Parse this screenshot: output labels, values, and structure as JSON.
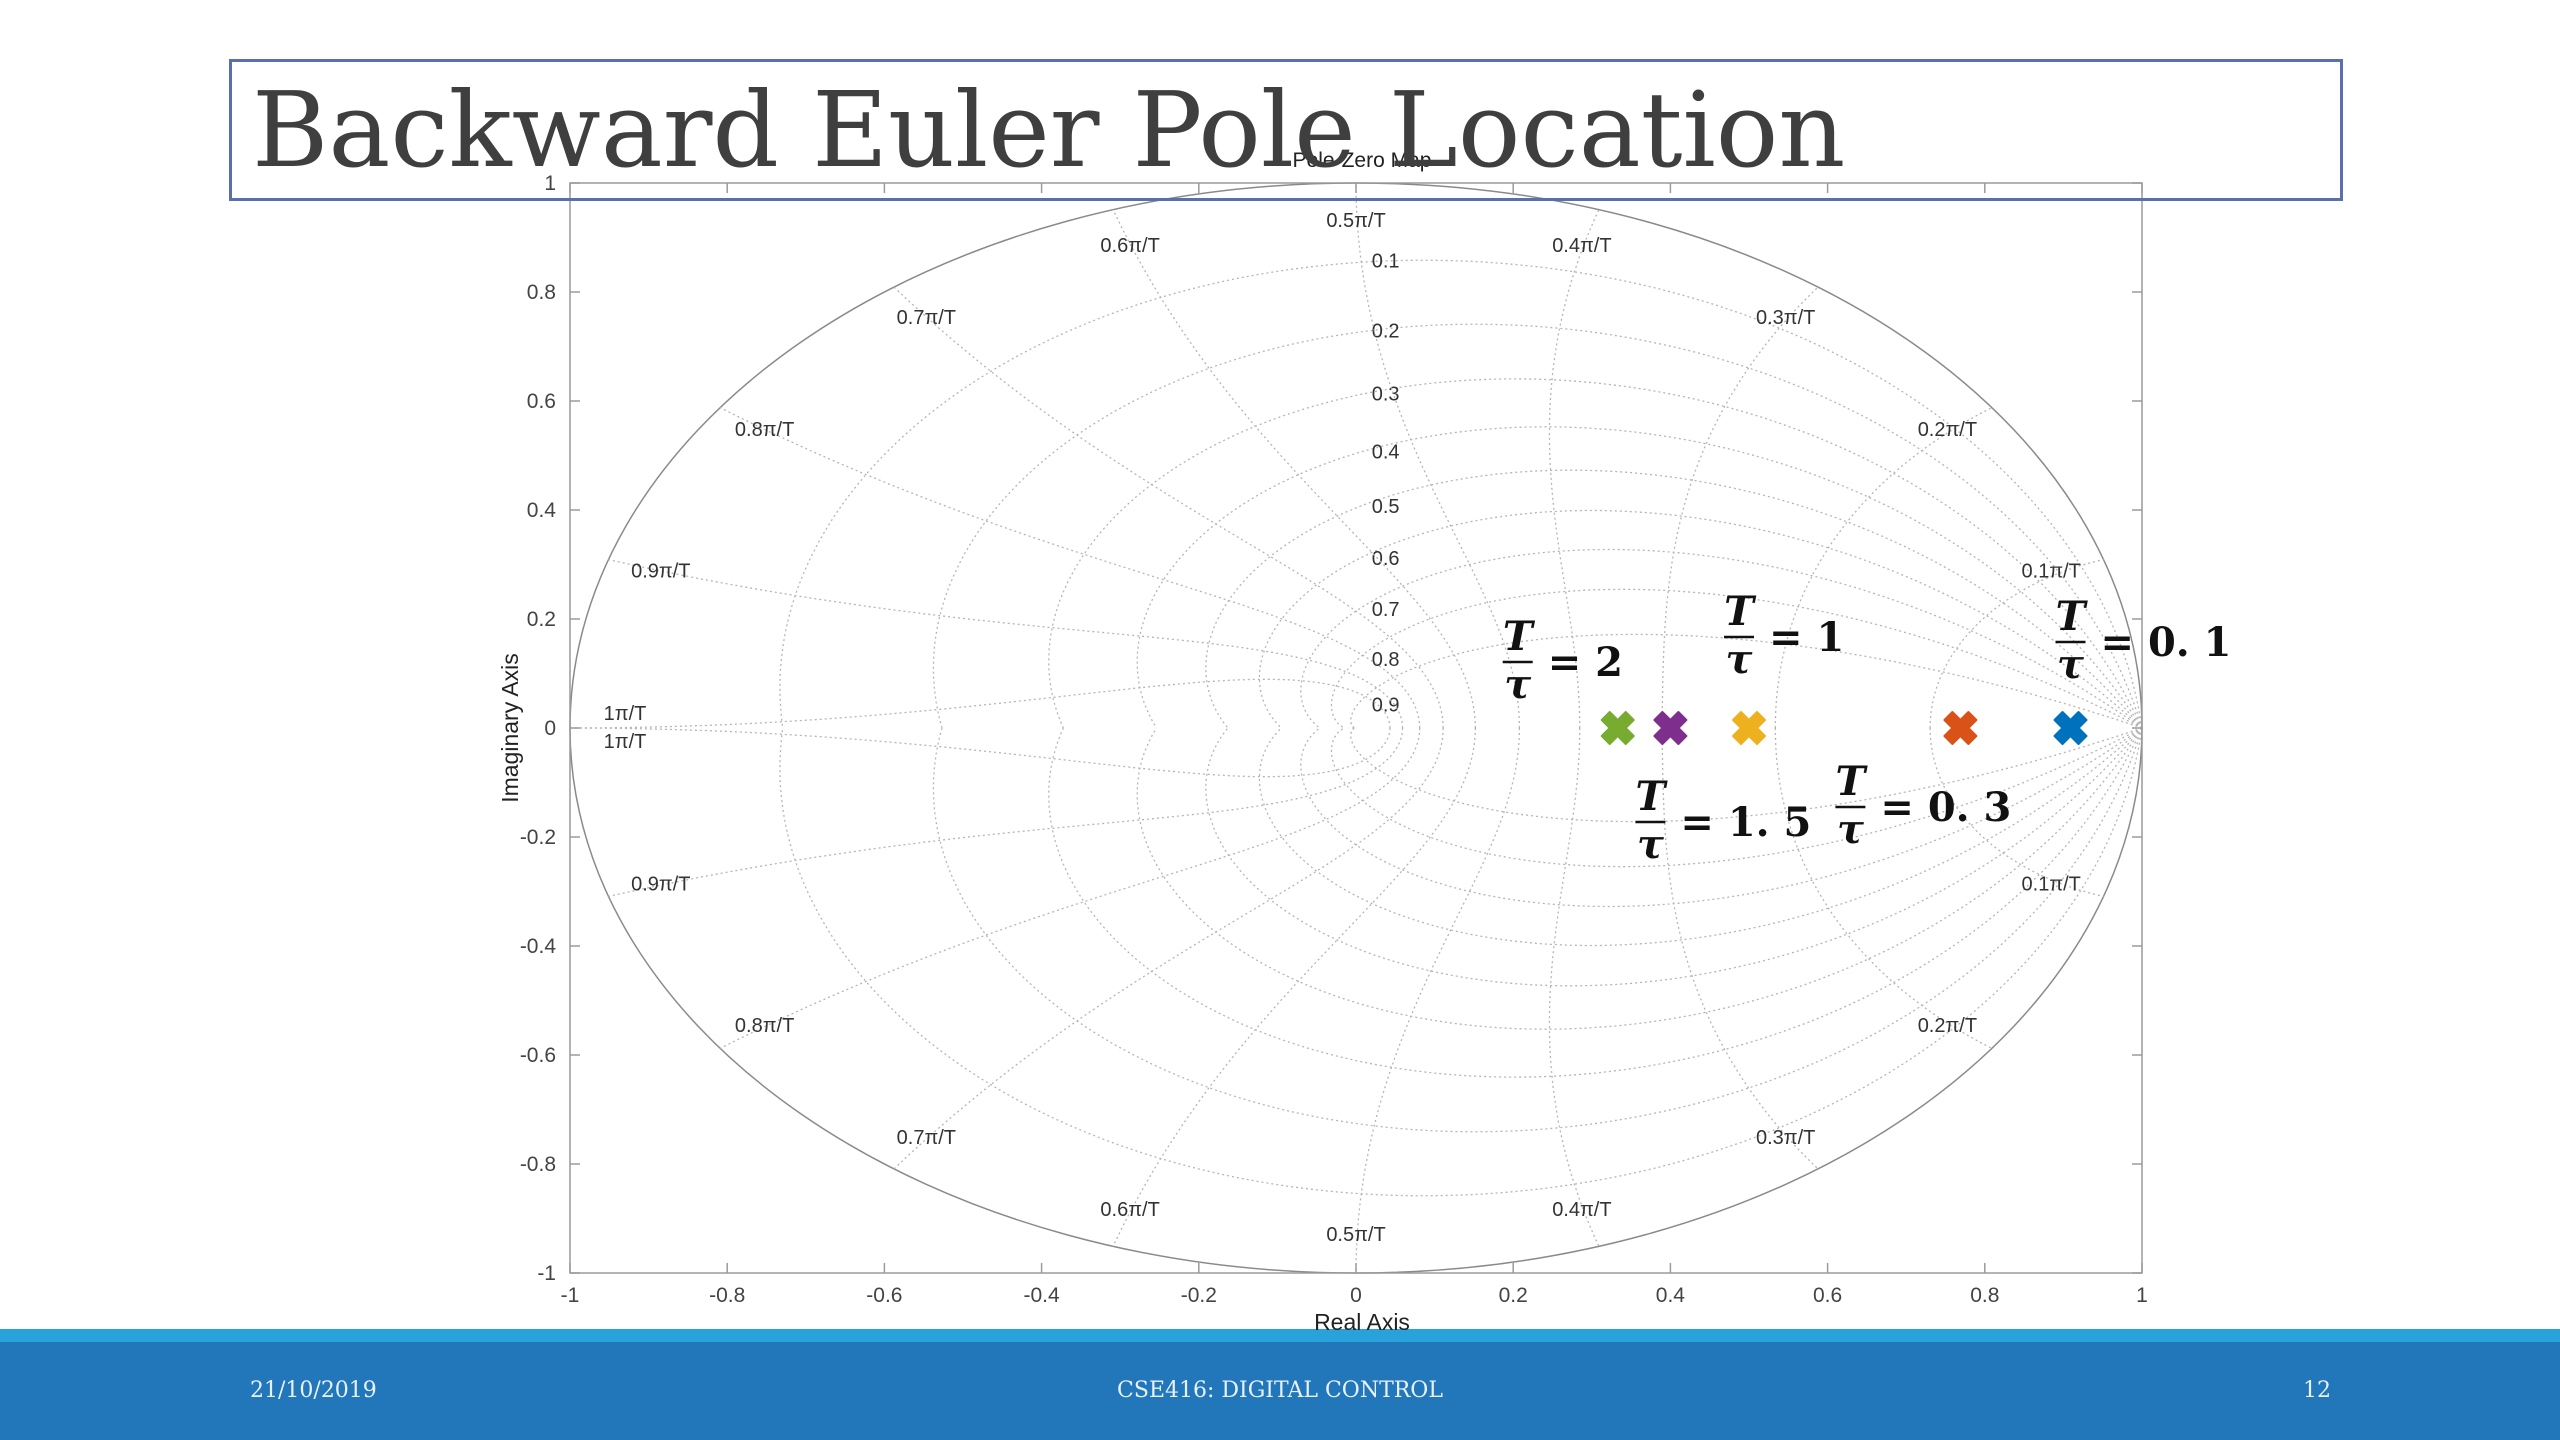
{
  "slide": {
    "title": "Backward Euler Pole Location",
    "footer": {
      "date": "21/10/2019",
      "course": "CSE416: DIGITAL CONTROL",
      "page": "12"
    }
  },
  "chart_data": {
    "type": "scatter",
    "title": "Pole-Zero Map",
    "xlabel": "Real Axis",
    "ylabel": "Imaginary Axis",
    "xlim": [
      -1,
      1
    ],
    "ylim": [
      -1,
      1
    ],
    "x_ticks": [
      "-1",
      "-0.8",
      "-0.6",
      "-0.4",
      "-0.2",
      "0",
      "0.2",
      "0.4",
      "0.6",
      "0.8",
      "1"
    ],
    "y_ticks": [
      "1",
      "0.8",
      "0.6",
      "0.4",
      "0.2",
      "0",
      "-0.2",
      "-0.4",
      "-0.6",
      "-0.8",
      "-1"
    ],
    "grid": "zgrid",
    "damping_labels": [
      "0.1",
      "0.2",
      "0.3",
      "0.4",
      "0.5",
      "0.6",
      "0.7",
      "0.8",
      "0.9"
    ],
    "wn_labels": [
      "0.1π/T",
      "0.2π/T",
      "0.3π/T",
      "0.4π/T",
      "0.5π/T",
      "0.6π/T",
      "0.7π/T",
      "0.8π/T",
      "0.9π/T",
      "1π/T"
    ],
    "series": [
      {
        "x": 0.909,
        "y": 0,
        "color": "#0072bd",
        "label": {
          "num": "T",
          "den": "τ",
          "value": "= 0. 1"
        }
      },
      {
        "x": 0.769,
        "y": 0,
        "color": "#d95319",
        "label": {
          "num": "T",
          "den": "τ",
          "value": "= 0. 3"
        }
      },
      {
        "x": 0.5,
        "y": 0,
        "color": "#edb120",
        "label": {
          "num": "T",
          "den": "τ",
          "value": "= 1"
        }
      },
      {
        "x": 0.4,
        "y": 0,
        "color": "#7e2f8e",
        "label": {
          "num": "T",
          "den": "τ",
          "value": "= 1. 5"
        }
      },
      {
        "x": 0.333,
        "y": 0,
        "color": "#77ac30",
        "label": {
          "num": "T",
          "den": "τ",
          "value": "= 2"
        }
      }
    ]
  }
}
